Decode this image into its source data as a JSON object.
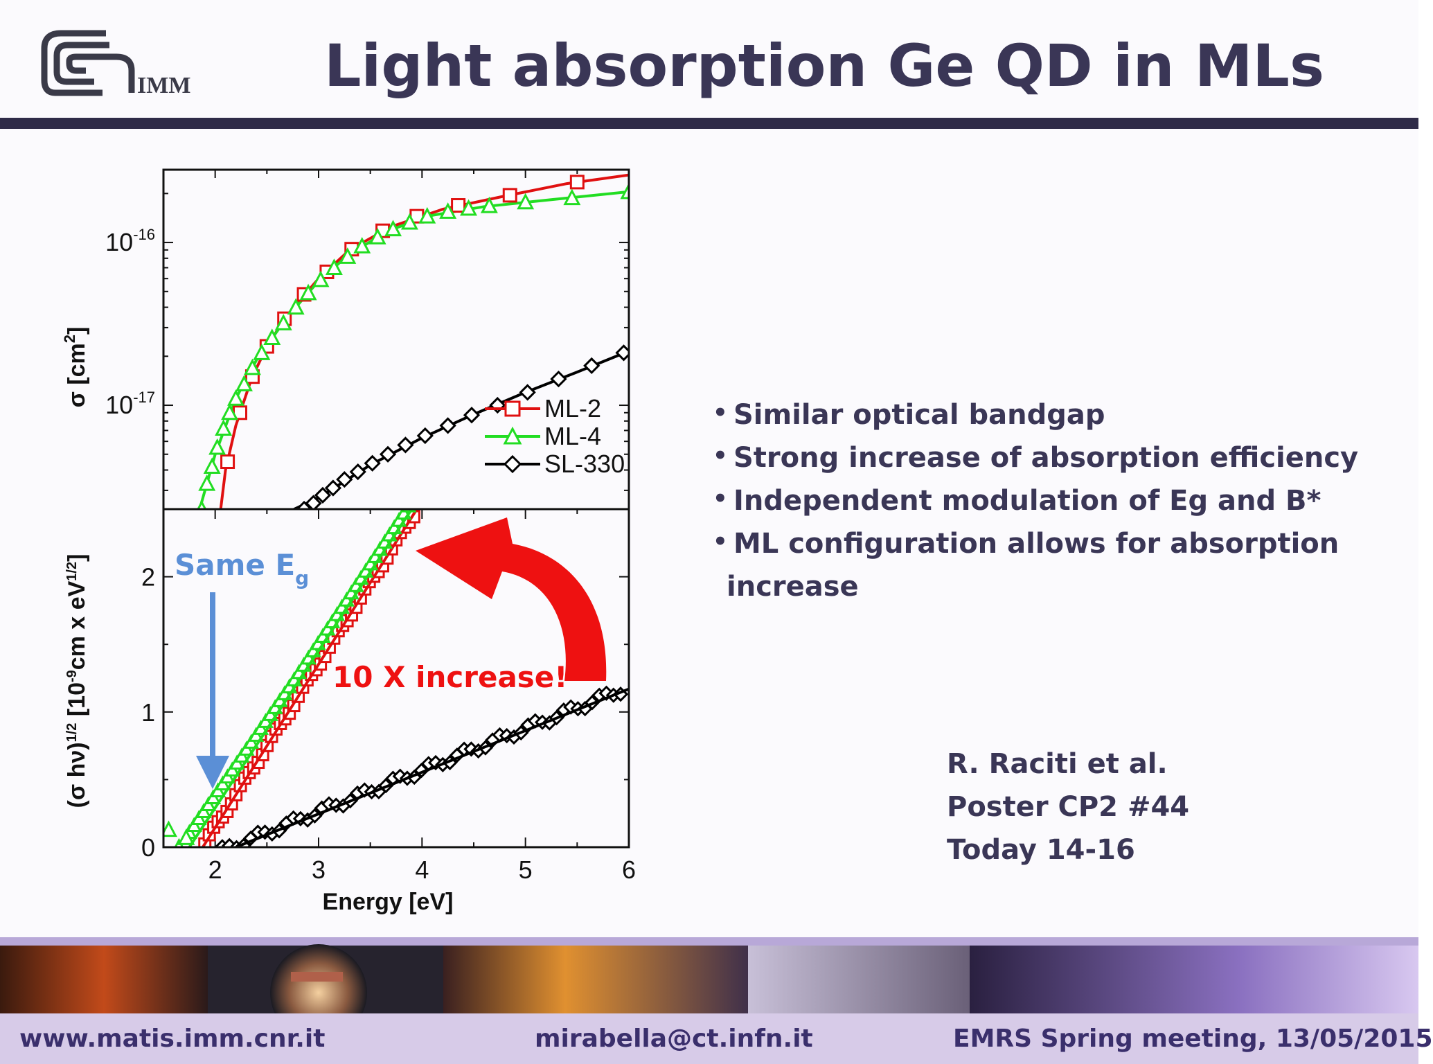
{
  "header": {
    "title": "Light absorption Ge QD in MLs",
    "logo_text": "IMM"
  },
  "annotations": {
    "same_eg_main": "Same E",
    "same_eg_sub": "g",
    "increase": "10 X increase!"
  },
  "bullets": [
    "Similar optical bandgap",
    "Strong increase of absorption efficiency",
    "Independent modulation of Eg and B*",
    "ML configuration allows for absorption",
    "increase"
  ],
  "reference": {
    "author": "R. Raciti et al.",
    "poster": "Poster CP2 #44",
    "time": "Today 14-16"
  },
  "footer": {
    "website": "www.matis.imm.cnr.it",
    "email": "mirabella@ct.infn.it",
    "event": "EMRS Spring meeting, 13/05/2015"
  },
  "colors": {
    "ml2": "#e01010",
    "ml4": "#22dd22",
    "sl330": "#000000",
    "title_text": "#3a3656",
    "annotation_blue": "#5b8fd6",
    "annotation_red": "#ee1111"
  },
  "chart_data": [
    {
      "type": "scatter",
      "panel": "top",
      "ylabel_main": "σ [cm",
      "ylabel_sup": "2",
      "ylabel_end": "]",
      "yscale": "log",
      "xlim": [
        1.5,
        6
      ],
      "ylim": [
        2.3e-18,
        2.8e-16
      ],
      "ytick_labels": [
        {
          "base": "10",
          "exp": "-16",
          "value": 1e-16
        },
        {
          "base": "10",
          "exp": "-17",
          "value": 1e-17
        }
      ],
      "legend": {
        "position": "bottom-right",
        "entries": [
          "ML-2",
          "ML-4",
          "SL-330"
        ]
      },
      "series": [
        {
          "name": "ML-2",
          "marker": "square",
          "points": [
            [
              2.12,
              4.5e-18
            ],
            [
              2.24,
              9e-18
            ],
            [
              2.36,
              1.5e-17
            ],
            [
              2.5,
              2.3e-17
            ],
            [
              2.67,
              3.4e-17
            ],
            [
              2.86,
              4.8e-17
            ],
            [
              3.08,
              6.6e-17
            ],
            [
              3.32,
              9.1e-17
            ],
            [
              3.62,
              1.18e-16
            ],
            [
              3.95,
              1.45e-16
            ],
            [
              4.35,
              1.69e-16
            ],
            [
              4.85,
              1.95e-16
            ],
            [
              5.5,
              2.35e-16
            ]
          ],
          "curve": [
            [
              2.05,
              2.2e-18
            ],
            [
              2.1,
              4e-18
            ],
            [
              2.2,
              7.5e-18
            ],
            [
              2.35,
              1.45e-17
            ],
            [
              2.5,
              2.3e-17
            ],
            [
              2.7,
              3.6e-17
            ],
            [
              3.0,
              6e-17
            ],
            [
              3.3,
              9e-17
            ],
            [
              3.7,
              1.25e-16
            ],
            [
              4.2,
              1.6e-16
            ],
            [
              4.8,
              1.93e-16
            ],
            [
              5.4,
              2.3e-16
            ],
            [
              6.0,
              2.6e-16
            ]
          ]
        },
        {
          "name": "ML-4",
          "marker": "triangle",
          "points": [
            [
              1.87,
              2.3e-18
            ],
            [
              1.92,
              3.3e-18
            ],
            [
              1.97,
              4.2e-18
            ],
            [
              2.02,
              5.5e-18
            ],
            [
              2.08,
              7.2e-18
            ],
            [
              2.14,
              9e-18
            ],
            [
              2.2,
              1.1e-17
            ],
            [
              2.28,
              1.35e-17
            ],
            [
              2.36,
              1.7e-17
            ],
            [
              2.45,
              2.1e-17
            ],
            [
              2.55,
              2.6e-17
            ],
            [
              2.66,
              3.2e-17
            ],
            [
              2.78,
              4e-17
            ],
            [
              2.9,
              4.9e-17
            ],
            [
              3.02,
              5.9e-17
            ],
            [
              3.15,
              7e-17
            ],
            [
              3.28,
              8.2e-17
            ],
            [
              3.42,
              9.5e-17
            ],
            [
              3.57,
              1.08e-16
            ],
            [
              3.72,
              1.21e-16
            ],
            [
              3.88,
              1.33e-16
            ],
            [
              4.05,
              1.45e-16
            ],
            [
              4.25,
              1.55e-16
            ],
            [
              4.45,
              1.62e-16
            ],
            [
              4.65,
              1.68e-16
            ],
            [
              5.0,
              1.77e-16
            ],
            [
              5.45,
              1.88e-16
            ],
            [
              6.0,
              2.05e-16
            ]
          ],
          "curve": [
            [
              1.85,
              2.3e-18
            ],
            [
              2.0,
              5e-18
            ],
            [
              2.2,
              1.1e-17
            ],
            [
              2.4,
              1.9e-17
            ],
            [
              2.7,
              3.5e-17
            ],
            [
              3.0,
              5.8e-17
            ],
            [
              3.3,
              8.5e-17
            ],
            [
              3.7,
              1.2e-16
            ],
            [
              4.1,
              1.47e-16
            ],
            [
              4.6,
              1.66e-16
            ],
            [
              5.2,
              1.82e-16
            ],
            [
              6.0,
              2.05e-16
            ]
          ]
        },
        {
          "name": "SL-330",
          "marker": "diamond",
          "points": [
            [
              2.86,
              2.3e-18
            ],
            [
              2.95,
              2.5e-18
            ],
            [
              3.04,
              2.8e-18
            ],
            [
              3.14,
              3.1e-18
            ],
            [
              3.25,
              3.5e-18
            ],
            [
              3.38,
              3.9e-18
            ],
            [
              3.52,
              4.4e-18
            ],
            [
              3.67,
              5e-18
            ],
            [
              3.84,
              5.7e-18
            ],
            [
              4.03,
              6.5e-18
            ],
            [
              4.25,
              7.5e-18
            ],
            [
              4.48,
              8.7e-18
            ],
            [
              4.73,
              1e-17
            ],
            [
              5.02,
              1.2e-17
            ],
            [
              5.32,
              1.45e-17
            ],
            [
              5.64,
              1.75e-17
            ],
            [
              5.95,
              2.1e-17
            ]
          ],
          "curve": [
            [
              2.7,
              2.2e-18
            ],
            [
              3.0,
              2.7e-18
            ],
            [
              3.5,
              4.3e-18
            ],
            [
              4.0,
              6.3e-18
            ],
            [
              4.5,
              8.8e-18
            ],
            [
              5.0,
              1.2e-17
            ],
            [
              5.5,
              1.6e-17
            ],
            [
              6.0,
              2.15e-17
            ]
          ]
        }
      ]
    },
    {
      "type": "scatter",
      "panel": "bottom",
      "xlabel": "Energy [eV]",
      "ylabel_pre": "(σ hν)",
      "ylabel_sup1": "1/2",
      "ylabel_mid": " [10",
      "ylabel_sup2": "-9",
      "ylabel_mid2": "cm x eV",
      "ylabel_sup3": "1/2",
      "ylabel_end": "]",
      "xlim": [
        1.5,
        6
      ],
      "ylim": [
        0,
        2.5
      ],
      "xticks": [
        2,
        3,
        4,
        5,
        6
      ],
      "xtick_labels": [
        "2",
        "3",
        "4",
        "5",
        "6"
      ],
      "yticks": [
        0,
        1,
        2
      ],
      "ytick_labels": [
        "0",
        "1",
        "2"
      ],
      "series": [
        {
          "name": "ML-2",
          "marker": "square",
          "x_range": [
            1.9,
            3.92
          ],
          "n_points": 48,
          "slope": 1.22,
          "intercept_x": 1.9,
          "fit": [
            [
              1.88,
              0.0
            ],
            [
              3.95,
              2.5
            ]
          ]
        },
        {
          "name": "ML-4",
          "marker": "triangle",
          "points_low": [
            [
              1.55,
              0.13
            ],
            [
              1.65,
              0.0
            ],
            [
              1.72,
              0.07
            ]
          ],
          "x_range": [
            1.75,
            4.1
          ],
          "n_points": 52,
          "fit": [
            [
              1.75,
              0.0
            ],
            [
              3.9,
              2.5
            ]
          ]
        },
        {
          "name": "SL-330",
          "marker": "diamond",
          "x_range": [
            2.0,
            5.92
          ],
          "n_points": 58,
          "fit": [
            [
              2.2,
              0.0
            ],
            [
              6.0,
              1.17
            ]
          ]
        }
      ]
    }
  ]
}
